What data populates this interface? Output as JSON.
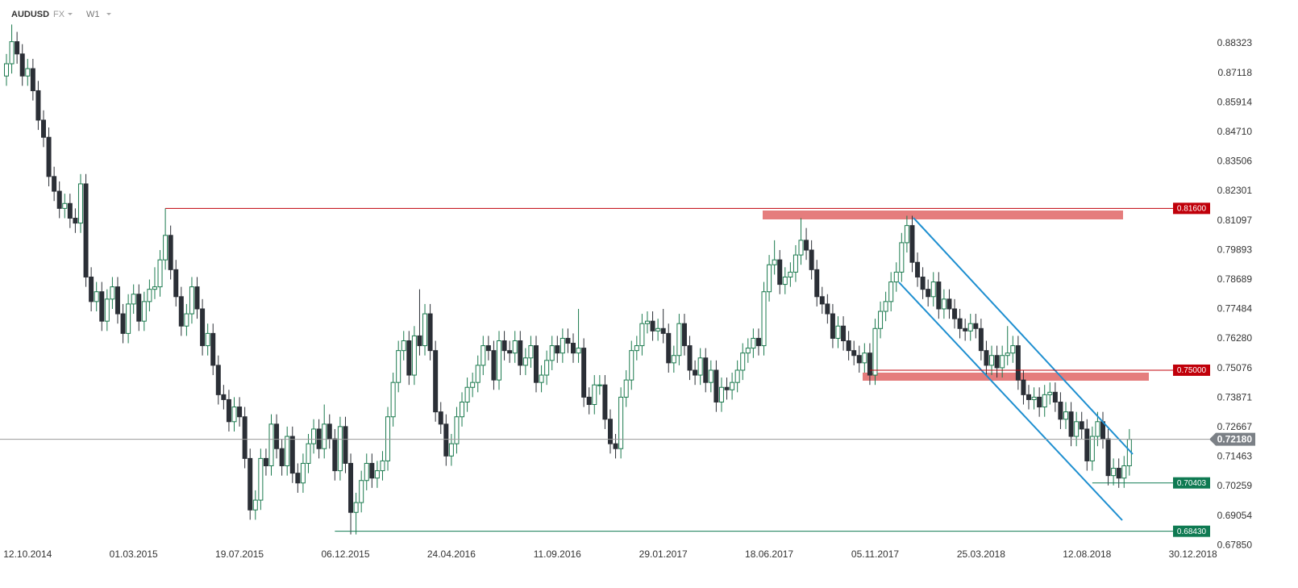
{
  "chart_data": {
    "type": "candlestick",
    "symbol": "AUDUSD",
    "market": "FX",
    "timeframe": "W1",
    "up_color": "#1b7a4e",
    "down_color": "#2b2f36",
    "ylim": [
      0.6707,
      0.901
    ],
    "yticks": [
      0.88323,
      0.87118,
      0.85914,
      {
        "value": 0.8471,
        "label": "0.84710"
      },
      0.83506,
      0.82301,
      0.81097,
      0.79893,
      0.78689,
      0.77484,
      {
        "value": 0.7628,
        "label": "0.76280"
      },
      0.75076,
      0.73871,
      0.72667,
      0.71463,
      0.70259,
      0.69054,
      {
        "value": 0.6785,
        "label": "0.67850"
      }
    ],
    "xticks": [
      "12.10.2014",
      "01.03.2015",
      "19.07.2015",
      "06.12.2015",
      "24.04.2016",
      "11.09.2016",
      "29.01.2017",
      "18.06.2017",
      "05.11.2017",
      "25.03.2018",
      "12.08.2018",
      "30.12.2018"
    ],
    "levels": [
      {
        "value": 0.816,
        "label": "0.81600",
        "color": "#c0000a"
      },
      {
        "value": 0.75,
        "label": "0.75000",
        "color": "#c0000a"
      },
      {
        "value": 0.70403,
        "label": "0.70403",
        "color": "#0f7a52"
      },
      {
        "value": 0.6843,
        "label": "0.68430",
        "color": "#0f7a52"
      }
    ],
    "last_price": {
      "value": 0.7218,
      "label": "0.72180",
      "color": "#7b8086"
    },
    "ohlc": [
      [
        0.87,
        0.879,
        0.866,
        0.875
      ],
      [
        0.875,
        0.891,
        0.871,
        0.884
      ],
      [
        0.884,
        0.888,
        0.875,
        0.879
      ],
      [
        0.879,
        0.883,
        0.866,
        0.87
      ],
      [
        0.87,
        0.877,
        0.866,
        0.873
      ],
      [
        0.873,
        0.877,
        0.86,
        0.864
      ],
      [
        0.864,
        0.868,
        0.848,
        0.852
      ],
      [
        0.852,
        0.856,
        0.841,
        0.845
      ],
      [
        0.845,
        0.849,
        0.825,
        0.829
      ],
      [
        0.829,
        0.833,
        0.819,
        0.823
      ],
      [
        0.823,
        0.827,
        0.812,
        0.816
      ],
      [
        0.816,
        0.822,
        0.812,
        0.818
      ],
      [
        0.818,
        0.822,
        0.808,
        0.812
      ],
      [
        0.812,
        0.816,
        0.806,
        0.81
      ],
      [
        0.81,
        0.83,
        0.806,
        0.826
      ],
      [
        0.826,
        0.83,
        0.784,
        0.788
      ],
      [
        0.788,
        0.792,
        0.774,
        0.778
      ],
      [
        0.778,
        0.786,
        0.774,
        0.782
      ],
      [
        0.782,
        0.786,
        0.766,
        0.77
      ],
      [
        0.77,
        0.783,
        0.766,
        0.779
      ],
      [
        0.779,
        0.788,
        0.775,
        0.784
      ],
      [
        0.784,
        0.788,
        0.769,
        0.773
      ],
      [
        0.773,
        0.777,
        0.761,
        0.765
      ],
      [
        0.765,
        0.781,
        0.761,
        0.777
      ],
      [
        0.777,
        0.785,
        0.773,
        0.781
      ],
      [
        0.781,
        0.785,
        0.766,
        0.77
      ],
      [
        0.77,
        0.782,
        0.766,
        0.778
      ],
      [
        0.778,
        0.787,
        0.774,
        0.783
      ],
      [
        0.783,
        0.792,
        0.779,
        0.784
      ],
      [
        0.784,
        0.799,
        0.78,
        0.795
      ],
      [
        0.795,
        0.816,
        0.791,
        0.805
      ],
      [
        0.805,
        0.809,
        0.787,
        0.791
      ],
      [
        0.791,
        0.795,
        0.776,
        0.78
      ],
      [
        0.78,
        0.784,
        0.764,
        0.768
      ],
      [
        0.768,
        0.777,
        0.764,
        0.773
      ],
      [
        0.773,
        0.788,
        0.769,
        0.784
      ],
      [
        0.784,
        0.788,
        0.771,
        0.775
      ],
      [
        0.775,
        0.779,
        0.756,
        0.76
      ],
      [
        0.76,
        0.769,
        0.756,
        0.765
      ],
      [
        0.765,
        0.769,
        0.748,
        0.752
      ],
      [
        0.752,
        0.756,
        0.736,
        0.74
      ],
      [
        0.74,
        0.744,
        0.734,
        0.738
      ],
      [
        0.738,
        0.742,
        0.725,
        0.729
      ],
      [
        0.729,
        0.739,
        0.725,
        0.735
      ],
      [
        0.735,
        0.739,
        0.727,
        0.731
      ],
      [
        0.731,
        0.735,
        0.71,
        0.714
      ],
      [
        0.714,
        0.718,
        0.689,
        0.693
      ],
      [
        0.693,
        0.701,
        0.689,
        0.697
      ],
      [
        0.697,
        0.718,
        0.693,
        0.714
      ],
      [
        0.714,
        0.718,
        0.707,
        0.711
      ],
      [
        0.711,
        0.732,
        0.707,
        0.728
      ],
      [
        0.728,
        0.732,
        0.714,
        0.718
      ],
      [
        0.718,
        0.722,
        0.707,
        0.711
      ],
      [
        0.711,
        0.727,
        0.707,
        0.723
      ],
      [
        0.723,
        0.727,
        0.704,
        0.708
      ],
      [
        0.708,
        0.712,
        0.7,
        0.704
      ],
      [
        0.704,
        0.716,
        0.7,
        0.712
      ],
      [
        0.712,
        0.724,
        0.708,
        0.72
      ],
      [
        0.72,
        0.73,
        0.716,
        0.726
      ],
      [
        0.726,
        0.73,
        0.714,
        0.718
      ],
      [
        0.718,
        0.736,
        0.714,
        0.728
      ],
      [
        0.728,
        0.732,
        0.718,
        0.722
      ],
      [
        0.722,
        0.726,
        0.705,
        0.709
      ],
      [
        0.709,
        0.731,
        0.705,
        0.727
      ],
      [
        0.727,
        0.731,
        0.708,
        0.712
      ],
      [
        0.712,
        0.716,
        0.683,
        0.692
      ],
      [
        0.692,
        0.7,
        0.683,
        0.696
      ],
      [
        0.696,
        0.709,
        0.692,
        0.705
      ],
      [
        0.705,
        0.716,
        0.701,
        0.712
      ],
      [
        0.712,
        0.716,
        0.702,
        0.706
      ],
      [
        0.706,
        0.713,
        0.702,
        0.709
      ],
      [
        0.709,
        0.717,
        0.705,
        0.713
      ],
      [
        0.713,
        0.735,
        0.709,
        0.731
      ],
      [
        0.731,
        0.749,
        0.727,
        0.745
      ],
      [
        0.745,
        0.762,
        0.741,
        0.758
      ],
      [
        0.758,
        0.766,
        0.754,
        0.762
      ],
      [
        0.762,
        0.766,
        0.744,
        0.748
      ],
      [
        0.748,
        0.768,
        0.744,
        0.764
      ],
      [
        0.764,
        0.783,
        0.756,
        0.76
      ],
      [
        0.76,
        0.777,
        0.756,
        0.773
      ],
      [
        0.773,
        0.777,
        0.754,
        0.758
      ],
      [
        0.758,
        0.762,
        0.729,
        0.733
      ],
      [
        0.733,
        0.737,
        0.724,
        0.728
      ],
      [
        0.728,
        0.732,
        0.711,
        0.715
      ],
      [
        0.715,
        0.724,
        0.711,
        0.72
      ],
      [
        0.72,
        0.735,
        0.716,
        0.731
      ],
      [
        0.731,
        0.741,
        0.727,
        0.737
      ],
      [
        0.737,
        0.747,
        0.733,
        0.743
      ],
      [
        0.743,
        0.749,
        0.739,
        0.745
      ],
      [
        0.745,
        0.756,
        0.741,
        0.752
      ],
      [
        0.752,
        0.764,
        0.748,
        0.76
      ],
      [
        0.76,
        0.764,
        0.754,
        0.758
      ],
      [
        0.758,
        0.762,
        0.742,
        0.746
      ],
      [
        0.746,
        0.766,
        0.742,
        0.762
      ],
      [
        0.762,
        0.766,
        0.754,
        0.758
      ],
      [
        0.758,
        0.762,
        0.753,
        0.757
      ],
      [
        0.757,
        0.766,
        0.753,
        0.762
      ],
      [
        0.762,
        0.766,
        0.748,
        0.752
      ],
      [
        0.752,
        0.759,
        0.748,
        0.755
      ],
      [
        0.755,
        0.764,
        0.751,
        0.76
      ],
      [
        0.76,
        0.764,
        0.741,
        0.745
      ],
      [
        0.745,
        0.752,
        0.741,
        0.748
      ],
      [
        0.748,
        0.758,
        0.744,
        0.754
      ],
      [
        0.754,
        0.764,
        0.75,
        0.76
      ],
      [
        0.76,
        0.764,
        0.753,
        0.757
      ],
      [
        0.757,
        0.767,
        0.753,
        0.763
      ],
      [
        0.763,
        0.767,
        0.757,
        0.761
      ],
      [
        0.761,
        0.765,
        0.753,
        0.757
      ],
      [
        0.757,
        0.775,
        0.753,
        0.759
      ],
      [
        0.759,
        0.763,
        0.735,
        0.739
      ],
      [
        0.739,
        0.743,
        0.732,
        0.736
      ],
      [
        0.736,
        0.748,
        0.732,
        0.744
      ],
      [
        0.744,
        0.748,
        0.74,
        0.744
      ],
      [
        0.744,
        0.748,
        0.726,
        0.73
      ],
      [
        0.73,
        0.734,
        0.716,
        0.72
      ],
      [
        0.72,
        0.724,
        0.714,
        0.718
      ],
      [
        0.718,
        0.743,
        0.714,
        0.739
      ],
      [
        0.739,
        0.75,
        0.735,
        0.746
      ],
      [
        0.746,
        0.762,
        0.742,
        0.758
      ],
      [
        0.758,
        0.764,
        0.754,
        0.76
      ],
      [
        0.76,
        0.773,
        0.756,
        0.769
      ],
      [
        0.769,
        0.774,
        0.765,
        0.77
      ],
      [
        0.77,
        0.774,
        0.762,
        0.766
      ],
      [
        0.766,
        0.771,
        0.762,
        0.767
      ],
      [
        0.767,
        0.775,
        0.761,
        0.765
      ],
      [
        0.765,
        0.769,
        0.749,
        0.753
      ],
      [
        0.753,
        0.76,
        0.749,
        0.756
      ],
      [
        0.756,
        0.773,
        0.752,
        0.769
      ],
      [
        0.769,
        0.773,
        0.756,
        0.76
      ],
      [
        0.76,
        0.764,
        0.746,
        0.75
      ],
      [
        0.75,
        0.754,
        0.744,
        0.748
      ],
      [
        0.748,
        0.759,
        0.744,
        0.755
      ],
      [
        0.755,
        0.759,
        0.741,
        0.745
      ],
      [
        0.745,
        0.754,
        0.741,
        0.75
      ],
      [
        0.75,
        0.754,
        0.733,
        0.737
      ],
      [
        0.737,
        0.747,
        0.733,
        0.743
      ],
      [
        0.743,
        0.747,
        0.738,
        0.742
      ],
      [
        0.742,
        0.749,
        0.738,
        0.745
      ],
      [
        0.745,
        0.754,
        0.741,
        0.75
      ],
      [
        0.75,
        0.761,
        0.746,
        0.757
      ],
      [
        0.757,
        0.763,
        0.753,
        0.759
      ],
      [
        0.759,
        0.767,
        0.755,
        0.763
      ],
      [
        0.763,
        0.767,
        0.756,
        0.76
      ],
      [
        0.76,
        0.786,
        0.756,
        0.782
      ],
      [
        0.782,
        0.797,
        0.778,
        0.793
      ],
      [
        0.793,
        0.803,
        0.789,
        0.795
      ],
      [
        0.795,
        0.799,
        0.781,
        0.785
      ],
      [
        0.785,
        0.792,
        0.781,
        0.788
      ],
      [
        0.788,
        0.794,
        0.784,
        0.79
      ],
      [
        0.79,
        0.801,
        0.786,
        0.797
      ],
      [
        0.797,
        0.812,
        0.793,
        0.803
      ],
      [
        0.803,
        0.808,
        0.795,
        0.799
      ],
      [
        0.799,
        0.803,
        0.787,
        0.791
      ],
      [
        0.791,
        0.795,
        0.776,
        0.78
      ],
      [
        0.78,
        0.784,
        0.773,
        0.777
      ],
      [
        0.777,
        0.781,
        0.769,
        0.773
      ],
      [
        0.773,
        0.777,
        0.759,
        0.763
      ],
      [
        0.763,
        0.772,
        0.759,
        0.768
      ],
      [
        0.768,
        0.772,
        0.758,
        0.762
      ],
      [
        0.762,
        0.766,
        0.754,
        0.758
      ],
      [
        0.758,
        0.762,
        0.752,
        0.756
      ],
      [
        0.756,
        0.76,
        0.749,
        0.753
      ],
      [
        0.753,
        0.761,
        0.749,
        0.757
      ],
      [
        0.757,
        0.761,
        0.744,
        0.748
      ],
      [
        0.748,
        0.771,
        0.744,
        0.767
      ],
      [
        0.767,
        0.778,
        0.763,
        0.774
      ],
      [
        0.774,
        0.782,
        0.77,
        0.778
      ],
      [
        0.778,
        0.79,
        0.774,
        0.786
      ],
      [
        0.786,
        0.794,
        0.782,
        0.79
      ],
      [
        0.79,
        0.806,
        0.786,
        0.802
      ],
      [
        0.802,
        0.813,
        0.798,
        0.809
      ],
      [
        0.809,
        0.813,
        0.79,
        0.794
      ],
      [
        0.794,
        0.798,
        0.784,
        0.788
      ],
      [
        0.788,
        0.792,
        0.779,
        0.783
      ],
      [
        0.783,
        0.787,
        0.776,
        0.78
      ],
      [
        0.78,
        0.79,
        0.776,
        0.786
      ],
      [
        0.786,
        0.79,
        0.771,
        0.775
      ],
      [
        0.775,
        0.783,
        0.771,
        0.779
      ],
      [
        0.779,
        0.783,
        0.771,
        0.775
      ],
      [
        0.775,
        0.779,
        0.767,
        0.771
      ],
      [
        0.771,
        0.775,
        0.763,
        0.767
      ],
      [
        0.767,
        0.771,
        0.762,
        0.766
      ],
      [
        0.766,
        0.773,
        0.762,
        0.769
      ],
      [
        0.769,
        0.773,
        0.763,
        0.767
      ],
      [
        0.767,
        0.771,
        0.754,
        0.758
      ],
      [
        0.758,
        0.762,
        0.748,
        0.752
      ],
      [
        0.752,
        0.76,
        0.748,
        0.756
      ],
      [
        0.756,
        0.76,
        0.747,
        0.751
      ],
      [
        0.751,
        0.76,
        0.747,
        0.756
      ],
      [
        0.756,
        0.768,
        0.752,
        0.757
      ],
      [
        0.757,
        0.764,
        0.753,
        0.76
      ],
      [
        0.76,
        0.764,
        0.742,
        0.746
      ],
      [
        0.746,
        0.75,
        0.736,
        0.74
      ],
      [
        0.74,
        0.744,
        0.734,
        0.738
      ],
      [
        0.738,
        0.743,
        0.734,
        0.739
      ],
      [
        0.739,
        0.743,
        0.731,
        0.735
      ],
      [
        0.735,
        0.744,
        0.731,
        0.74
      ],
      [
        0.74,
        0.745,
        0.736,
        0.741
      ],
      [
        0.741,
        0.745,
        0.733,
        0.737
      ],
      [
        0.737,
        0.741,
        0.726,
        0.73
      ],
      [
        0.73,
        0.737,
        0.726,
        0.733
      ],
      [
        0.733,
        0.737,
        0.719,
        0.723
      ],
      [
        0.723,
        0.733,
        0.719,
        0.729
      ],
      [
        0.729,
        0.733,
        0.722,
        0.726
      ],
      [
        0.726,
        0.73,
        0.709,
        0.713
      ],
      [
        0.713,
        0.727,
        0.709,
        0.723
      ],
      [
        0.723,
        0.733,
        0.719,
        0.729
      ],
      [
        0.729,
        0.733,
        0.718,
        0.722
      ],
      [
        0.722,
        0.726,
        0.703,
        0.707
      ],
      [
        0.707,
        0.714,
        0.703,
        0.71
      ],
      [
        0.71,
        0.714,
        0.702,
        0.706
      ],
      [
        0.706,
        0.715,
        0.702,
        0.711
      ],
      [
        0.711,
        0.726,
        0.707,
        0.7218
      ]
    ]
  }
}
